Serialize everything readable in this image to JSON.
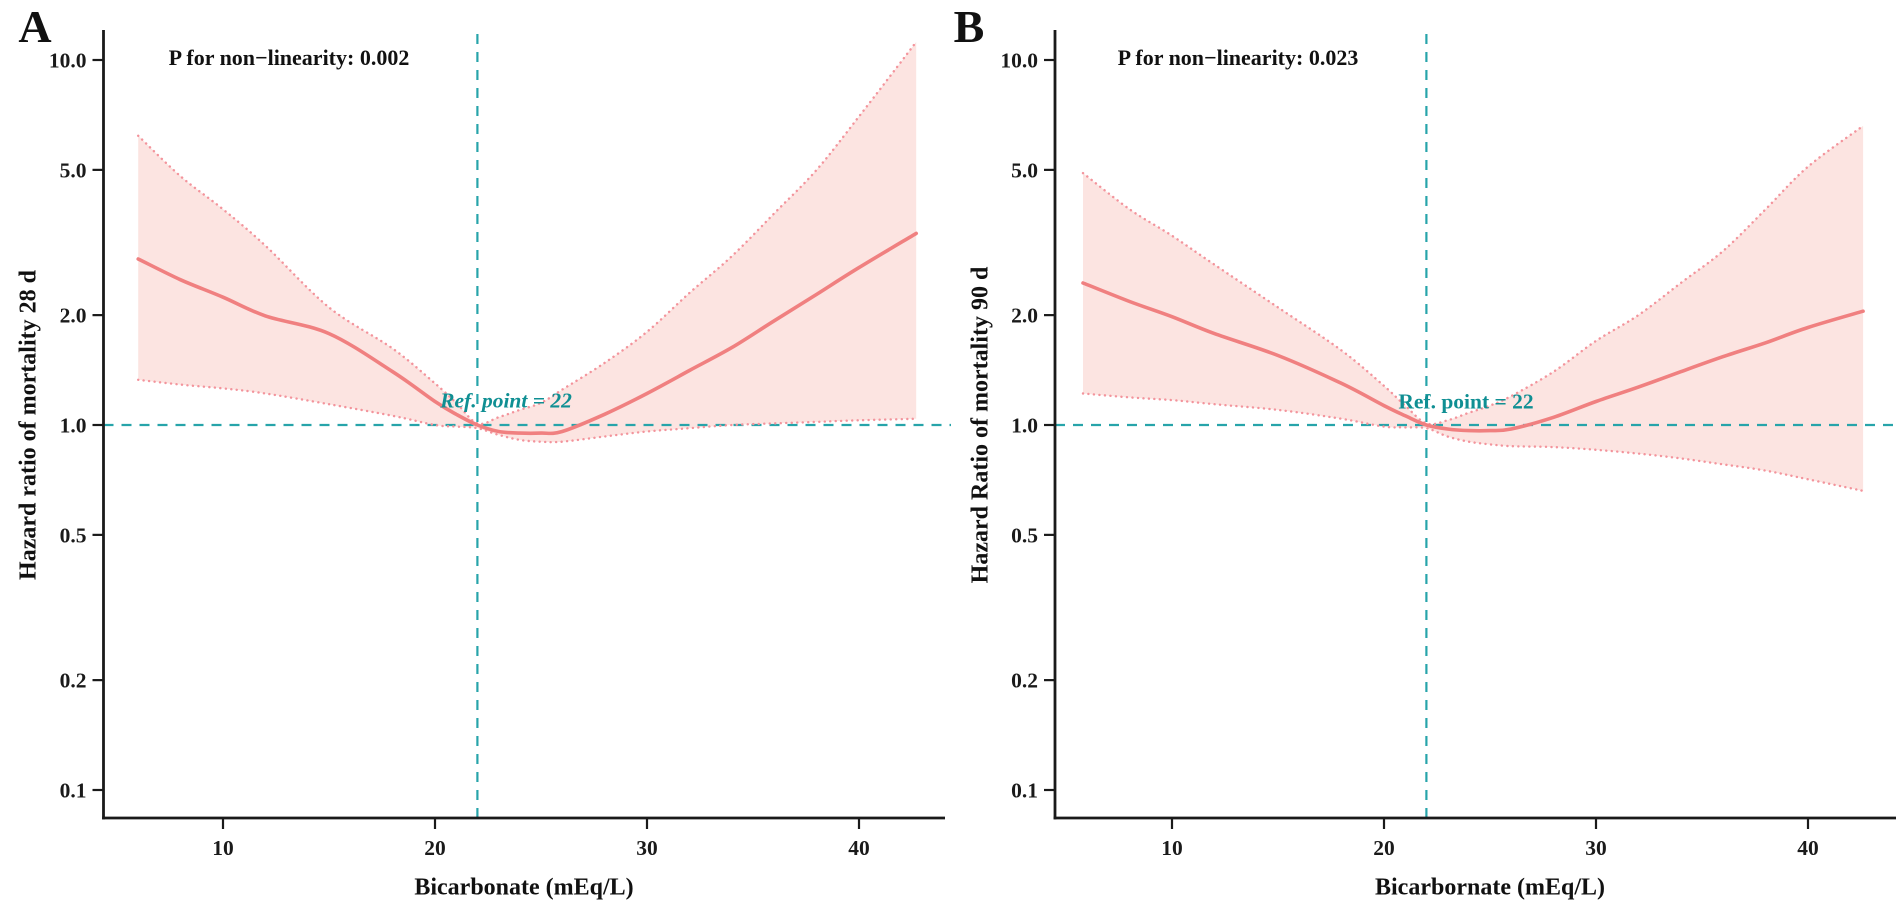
{
  "colors": {
    "curve": "#f08080",
    "ci_edge": "#f3949c",
    "ci_fill": "#fce4e1",
    "ref_dash": "#27a4aa",
    "ref_text": "#0f8f93",
    "axis": "#1a1a1a",
    "background": "#ffffff"
  },
  "chart_data": [
    {
      "type": "line",
      "panel_label": "A",
      "annotation_p": "P for non−linearity: 0.002",
      "ref_label": "Ref. point = 22",
      "ref_point_x": 22,
      "ref_line_y": 1.0,
      "xlabel": "Bicarbonate (mEq/L)",
      "ylabel": "Hazard ratio of mortality 28 d",
      "x_ticks": [
        10,
        20,
        30,
        40
      ],
      "x_tick_labels": [
        "10",
        "20",
        "30",
        "40"
      ],
      "y_ticks": [
        10,
        5,
        2,
        1,
        0.5,
        0.2,
        0.1
      ],
      "y_tick_labels": [
        "10.0",
        "5.0",
        "2.0",
        "1.0",
        "0.5",
        "0.2",
        "0.1"
      ],
      "xlim": [
        4.3,
        44.3
      ],
      "ylim": [
        0.085,
        12.2
      ],
      "y_scale": "log10",
      "grid": false,
      "legend": "none",
      "x": [
        6,
        8,
        10,
        12,
        15,
        18,
        20,
        21,
        22,
        23,
        24,
        25,
        26,
        28,
        30,
        32,
        34,
        36,
        38,
        40,
        42.7
      ],
      "series": [
        {
          "name": "hazard-ratio",
          "values": [
            2.85,
            2.5,
            2.24,
            1.99,
            1.78,
            1.4,
            1.16,
            1.07,
            1.0,
            0.96,
            0.95,
            0.95,
            0.96,
            1.07,
            1.22,
            1.41,
            1.63,
            1.93,
            2.28,
            2.7,
            3.35
          ]
        },
        {
          "name": "ci-upper",
          "values": [
            6.2,
            4.8,
            3.9,
            3.1,
            2.1,
            1.62,
            1.3,
            1.15,
            1.01,
            1.05,
            1.1,
            1.15,
            1.25,
            1.48,
            1.8,
            2.3,
            2.9,
            3.8,
            5.0,
            7.0,
            11.2
          ]
        },
        {
          "name": "ci-lower",
          "values": [
            1.33,
            1.29,
            1.26,
            1.22,
            1.14,
            1.06,
            1.0,
            0.99,
            0.98,
            0.94,
            0.91,
            0.9,
            0.9,
            0.93,
            0.96,
            0.98,
            1.0,
            1.01,
            1.02,
            1.03,
            1.04
          ]
        }
      ]
    },
    {
      "type": "line",
      "panel_label": "B",
      "annotation_p": "P for non−linearity: 0.023",
      "ref_label": "Ref. point = 22",
      "ref_point_x": 22,
      "ref_line_y": 1.0,
      "xlabel": "Bicarbornate (mEq/L)",
      "ylabel": "Hazard Ratio of mortality 90 d",
      "x_ticks": [
        10,
        20,
        30,
        40
      ],
      "x_tick_labels": [
        "10",
        "20",
        "30",
        "40"
      ],
      "y_ticks": [
        10,
        5,
        2,
        1,
        0.5,
        0.2,
        0.1
      ],
      "y_tick_labels": [
        "10.0",
        "5.0",
        "2.0",
        "1.0",
        "0.5",
        "0.2",
        "0.1"
      ],
      "xlim": [
        4.5,
        44.2
      ],
      "ylim": [
        0.085,
        12.2
      ],
      "y_scale": "log10",
      "grid": false,
      "legend": "none",
      "x": [
        5.8,
        8,
        10,
        12,
        15,
        18,
        20,
        21,
        22,
        23,
        24,
        25,
        26,
        28,
        30,
        32,
        34,
        36,
        38,
        40,
        42.6
      ],
      "series": [
        {
          "name": "hazard-ratio",
          "values": [
            2.45,
            2.18,
            1.98,
            1.78,
            1.55,
            1.3,
            1.13,
            1.06,
            1.0,
            0.975,
            0.965,
            0.965,
            0.975,
            1.05,
            1.16,
            1.27,
            1.4,
            1.54,
            1.68,
            1.85,
            2.05
          ]
        },
        {
          "name": "ci-upper",
          "values": [
            4.9,
            3.9,
            3.3,
            2.75,
            2.1,
            1.6,
            1.28,
            1.13,
            1.01,
            1.03,
            1.08,
            1.13,
            1.2,
            1.4,
            1.7,
            2.0,
            2.45,
            3.0,
            3.9,
            5.1,
            6.6
          ]
        },
        {
          "name": "ci-lower",
          "values": [
            1.22,
            1.19,
            1.17,
            1.14,
            1.1,
            1.04,
            0.99,
            0.985,
            0.98,
            0.93,
            0.9,
            0.885,
            0.875,
            0.87,
            0.855,
            0.835,
            0.81,
            0.78,
            0.75,
            0.71,
            0.66
          ]
        }
      ]
    }
  ]
}
